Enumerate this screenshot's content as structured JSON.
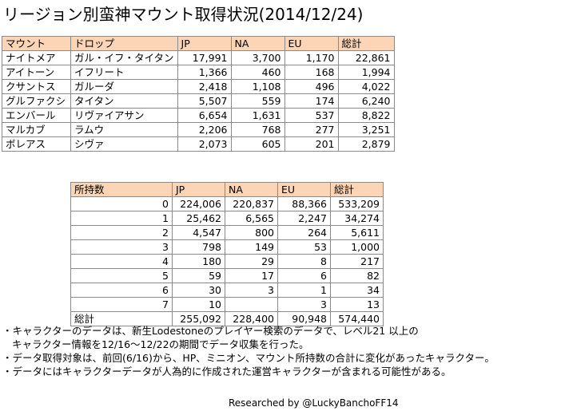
{
  "title": "リージョン別蛮神マウント取得状況(2014/12/24)",
  "table1": {
    "headers": [
      "マウント",
      "ドロップ",
      "JP",
      "NA",
      "EU",
      "総計"
    ],
    "rows": [
      [
        "ナイトメア",
        "ガル・イフ・タイタン",
        "17,991",
        "3,700",
        "1,170",
        "22,861"
      ],
      [
        "アイトーン",
        "イフリート",
        "1,366",
        "460",
        "168",
        "1,994"
      ],
      [
        "クサントス",
        "ガルーダ",
        "2,418",
        "1,108",
        "496",
        "4,022"
      ],
      [
        "グルファクシ",
        "タイタン",
        "5,507",
        "559",
        "174",
        "6,240"
      ],
      [
        "エンバール",
        "リヴァイアサン",
        "6,654",
        "1,631",
        "537",
        "8,822"
      ],
      [
        "マルカブ",
        "ラムウ",
        "2,206",
        "768",
        "277",
        "3,251"
      ],
      [
        "ボレアス",
        "シヴァ",
        "2,073",
        "605",
        "201",
        "2,879"
      ]
    ]
  },
  "table2": {
    "headers": [
      "所持数",
      "JP",
      "NA",
      "EU",
      "総計"
    ],
    "rows": [
      [
        "0",
        "224,006",
        "220,837",
        "88,366",
        "533,209"
      ],
      [
        "1",
        "25,462",
        "6,565",
        "2,247",
        "34,274"
      ],
      [
        "2",
        "4,547",
        "800",
        "264",
        "5,611"
      ],
      [
        "3",
        "798",
        "149",
        "53",
        "1,000"
      ],
      [
        "4",
        "180",
        "29",
        "8",
        "217"
      ],
      [
        "5",
        "59",
        "17",
        "6",
        "82"
      ],
      [
        "6",
        "30",
        "3",
        "1",
        "34"
      ],
      [
        "7",
        "10",
        "",
        "3",
        "13"
      ]
    ],
    "total": [
      "総計",
      "255,092",
      "228,400",
      "90,948",
      "574,440"
    ]
  },
  "notes": {
    "line1": "・キャラクターのデータは、新生Lodestoneのプレイヤー検索のデータで、レベル21 以上の",
    "line2": "キャラクター情報を12/16～12/22の期間でデータ収集を行った。",
    "line3": "・データ取得対象は、前回(6/16)から、HP、ミニオン、マウント所持数の合計に変化があったキャラクター。",
    "line4": "・データにはキャラクターデータが人為的に作成された運営キャラクターが含まれる可能性がある。"
  },
  "credit": "Researched by @LuckyBanchoFF14",
  "colors": {
    "header_bg": "#fbd5b5",
    "border": "#8a8a8a"
  }
}
